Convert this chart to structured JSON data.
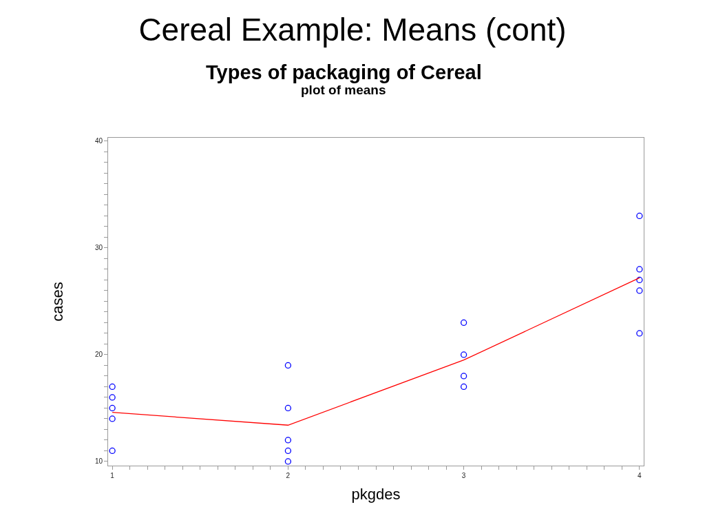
{
  "chart_data": {
    "type": "scatter",
    "title": "Cereal Example: Means (cont)",
    "subtitle": "Types of packaging of Cereal",
    "annotations": [
      "plot of means"
    ],
    "xlabel": "pkgdes",
    "ylabel": "cases",
    "xlim": [
      0.976,
      4.024
    ],
    "ylim": [
      9.61,
      40.32
    ],
    "xticks": [
      1,
      {
        "value": 1.1,
        "label": null
      },
      {
        "value": 1.2,
        "label": null
      },
      {
        "value": 1.3,
        "label": null
      },
      {
        "value": 1.4,
        "label": null
      },
      {
        "value": 1.5,
        "label": null
      },
      {
        "value": 1.6,
        "label": null
      },
      {
        "value": 1.7,
        "label": null
      },
      {
        "value": 1.8,
        "label": null
      },
      {
        "value": 1.9,
        "label": null
      },
      2,
      {
        "value": 2.1,
        "label": null
      },
      {
        "value": 2.2,
        "label": null
      },
      {
        "value": 2.3,
        "label": null
      },
      {
        "value": 2.4,
        "label": null
      },
      {
        "value": 2.5,
        "label": null
      },
      {
        "value": 2.6,
        "label": null
      },
      {
        "value": 2.7,
        "label": null
      },
      {
        "value": 2.8,
        "label": null
      },
      {
        "value": 2.9,
        "label": null
      },
      3,
      {
        "value": 3.1,
        "label": null
      },
      {
        "value": 3.2,
        "label": null
      },
      {
        "value": 3.3,
        "label": null
      },
      {
        "value": 3.4,
        "label": null
      },
      {
        "value": 3.5,
        "label": null
      },
      {
        "value": 3.6,
        "label": null
      },
      {
        "value": 3.7,
        "label": null
      },
      {
        "value": 3.8,
        "label": null
      },
      {
        "value": 3.9,
        "label": null
      },
      4
    ],
    "yticks": [
      10,
      {
        "value": 11,
        "label": null
      },
      {
        "value": 12,
        "label": null
      },
      {
        "value": 13,
        "label": null
      },
      {
        "value": 14,
        "label": null
      },
      {
        "value": 15,
        "label": null
      },
      {
        "value": 16,
        "label": null
      },
      {
        "value": 17,
        "label": null
      },
      {
        "value": 18,
        "label": null
      },
      {
        "value": 19,
        "label": null
      },
      20,
      {
        "value": 21,
        "label": null
      },
      {
        "value": 22,
        "label": null
      },
      {
        "value": 23,
        "label": null
      },
      {
        "value": 24,
        "label": null
      },
      {
        "value": 25,
        "label": null
      },
      {
        "value": 26,
        "label": null
      },
      {
        "value": 27,
        "label": null
      },
      {
        "value": 28,
        "label": null
      },
      {
        "value": 29,
        "label": null
      },
      30,
      {
        "value": 31,
        "label": null
      },
      {
        "value": 32,
        "label": null
      },
      {
        "value": 33,
        "label": null
      },
      {
        "value": 34,
        "label": null
      },
      {
        "value": 35,
        "label": null
      },
      {
        "value": 36,
        "label": null
      },
      {
        "value": 37,
        "label": null
      },
      {
        "value": 38,
        "label": null
      },
      {
        "value": 39,
        "label": null
      },
      40
    ],
    "series": [
      {
        "marker": "circle",
        "color": "#0000ff",
        "x": [
          1,
          1,
          1,
          1,
          1,
          2,
          2,
          2,
          2,
          2,
          3,
          3,
          3,
          3,
          4,
          4,
          4,
          4,
          4
        ],
        "values": [
          11,
          17,
          16,
          14,
          15,
          12,
          10,
          15,
          19,
          11,
          23,
          20,
          18,
          17,
          27,
          33,
          22,
          26,
          28
        ]
      },
      {
        "type": "line",
        "marker": "none",
        "line_style": "solid",
        "color": "#ff0000",
        "x": [
          1,
          2,
          3,
          4
        ],
        "values": [
          14.6,
          13.4,
          19.5,
          27.2
        ]
      }
    ]
  }
}
